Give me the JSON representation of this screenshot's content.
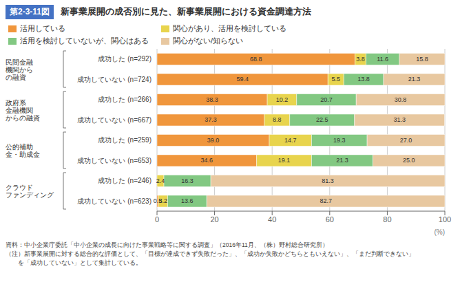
{
  "chart_data": {
    "type": "bar",
    "orientation": "horizontal",
    "stacked": true,
    "figure_number": "第2-3-11図",
    "title": "新事業展開の成否別に見た、新事業展開における資金調達方法",
    "groups": [
      "民間金融\n機関から\nの融資",
      "政府系\n金融機関\nからの融資",
      "公的補助\n金・助成金",
      "クラウド\nファンディング"
    ],
    "categories": [
      "成功した (n=292)",
      "成功していない (n=724)",
      "成功した (n=266)",
      "成功していない (n=667)",
      "成功した (n=259)",
      "成功していない (n=653)",
      "成功した (n=246)",
      "成功していない (n=623)"
    ],
    "series": [
      {
        "name": "活用している",
        "color": "#F0963C",
        "values": [
          68.8,
          59.4,
          38.3,
          37.3,
          39.0,
          34.6,
          0.0,
          0.5
        ],
        "value_labels": [
          "68.8",
          "59.4",
          "38.3",
          "37.3",
          "39.0",
          "34.6",
          null,
          "0.5"
        ]
      },
      {
        "name": "関心があり、活用を検討している",
        "color": "#E8D44D",
        "values": [
          3.8,
          5.5,
          10.2,
          8.8,
          14.7,
          19.1,
          2.4,
          3.2
        ],
        "value_labels": [
          "3.8",
          "5.5",
          "10.2",
          "8.8",
          "14.7",
          "19.1",
          "2.4",
          "3.2"
        ]
      },
      {
        "name": "活用を検討していないが、関心はある",
        "color": "#82C882",
        "values": [
          11.6,
          13.8,
          20.7,
          22.5,
          19.3,
          21.3,
          16.3,
          13.6
        ],
        "value_labels": [
          "11.6",
          "13.8",
          "20.7",
          "22.5",
          "19.3",
          "21.3",
          "16.3",
          "13.6"
        ]
      },
      {
        "name": "関心がない/知らない",
        "color": "#E8C8A0",
        "values": [
          15.8,
          21.3,
          30.8,
          31.3,
          27.0,
          25.0,
          81.3,
          82.7
        ],
        "value_labels": [
          "15.8",
          "21.3",
          "30.8",
          "31.3",
          "27.0",
          "25.0",
          "81.3",
          "82.7"
        ]
      }
    ],
    "xlim": [
      0,
      100
    ],
    "xticks": [
      0,
      20,
      40,
      60,
      80,
      100
    ],
    "xlabel": "(%)",
    "grid": true,
    "legend": "upper left",
    "data_labels": true,
    "footnotes": [
      "資料：中小企業庁委託「中小企業の成長に向けた事業戦略等に関する調査」（2016年11月、（株）野村総合研究所）",
      "（注）新事業展開に対する総合的な評価として、「目標が達成できず失敗だった」、「成功か失敗かどちらともいえない」、「まだ判断できない」",
      "　　を「成功していない」として集計している。"
    ]
  }
}
